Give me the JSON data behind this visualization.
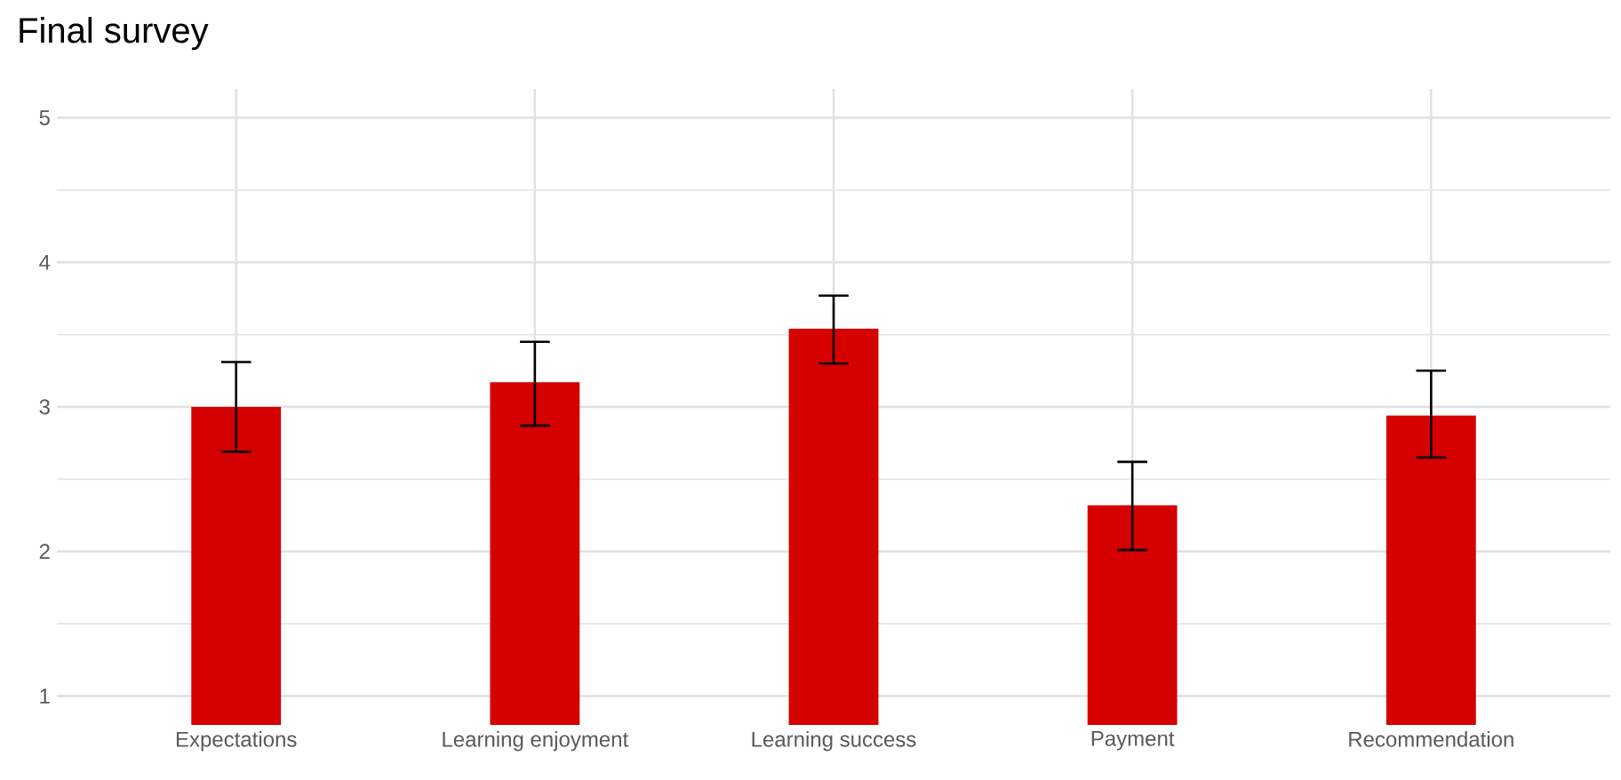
{
  "chart_data": {
    "type": "bar",
    "title": "Final survey",
    "categories": [
      "Expectations",
      "Learning enjoyment",
      "Learning success",
      "Payment",
      "Recommendation"
    ],
    "values": [
      3.0,
      3.17,
      3.54,
      2.32,
      2.94
    ],
    "errors": [
      [
        2.69,
        3.31
      ],
      [
        2.87,
        3.45
      ],
      [
        3.3,
        3.77
      ],
      [
        2.01,
        2.62
      ],
      [
        2.65,
        3.25
      ]
    ],
    "color": "#d50000",
    "ylim": [
      0.8,
      5.2
    ],
    "yticks": [
      1,
      2,
      3,
      4,
      5
    ],
    "grid": true
  }
}
